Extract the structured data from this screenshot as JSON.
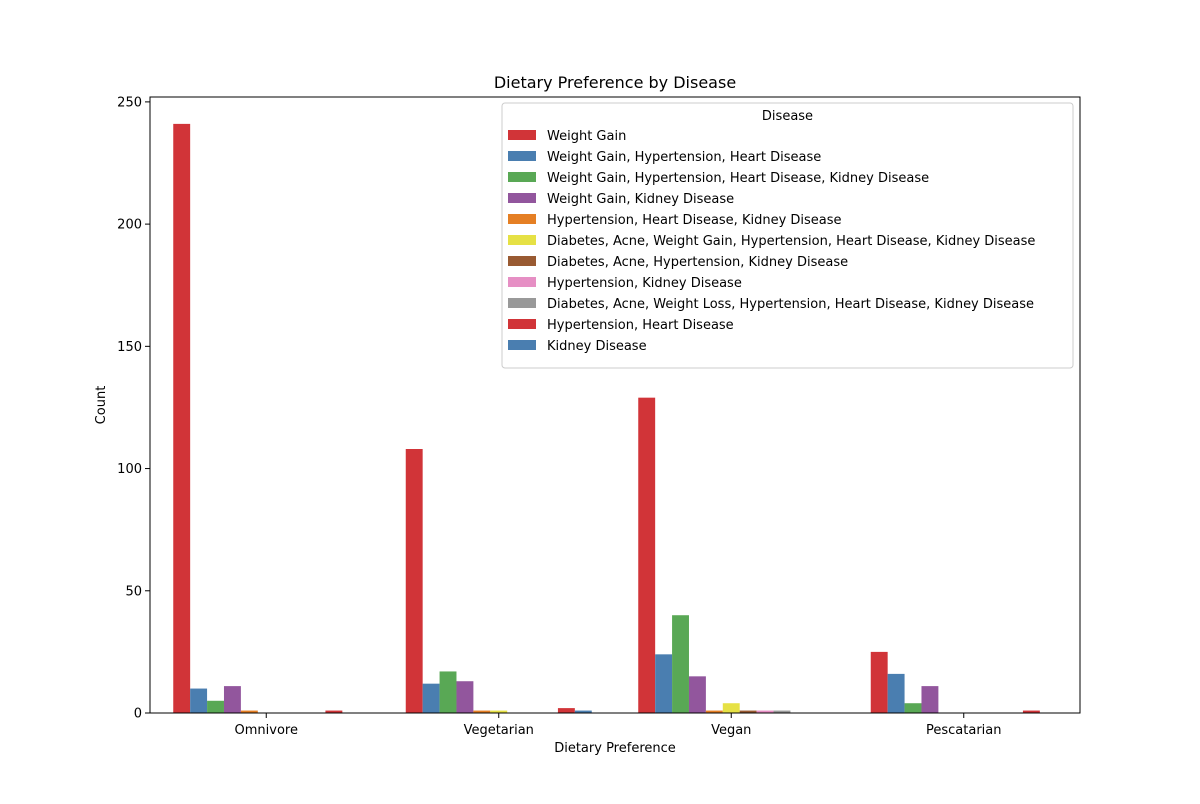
{
  "chart_data": {
    "type": "bar",
    "title": "Dietary Preference by Disease",
    "xlabel": "Dietary Preference",
    "ylabel": "Count",
    "ylim": [
      0,
      252
    ],
    "yticks": [
      0,
      50,
      100,
      150,
      200,
      250
    ],
    "categories": [
      "Omnivore",
      "Vegetarian",
      "Vegan",
      "Pescatarian"
    ],
    "legend": {
      "title": "Disease",
      "placement": "top-right"
    },
    "series": [
      {
        "name": "Weight Gain",
        "color": "#d13438",
        "values": [
          241,
          108,
          129,
          25
        ]
      },
      {
        "name": "Weight Gain, Hypertension, Heart Disease",
        "color": "#4a7eb0",
        "values": [
          10,
          12,
          24,
          16
        ]
      },
      {
        "name": "Weight Gain, Hypertension, Heart Disease, Kidney Disease",
        "color": "#59a855",
        "values": [
          5,
          17,
          40,
          4
        ]
      },
      {
        "name": "Weight Gain, Kidney Disease",
        "color": "#92569d",
        "values": [
          11,
          13,
          15,
          11
        ]
      },
      {
        "name": "Hypertension, Heart Disease, Kidney Disease",
        "color": "#e57f24",
        "values": [
          1,
          1,
          1,
          0
        ]
      },
      {
        "name": "Diabetes, Acne, Weight Gain, Hypertension, Heart Disease, Kidney Disease",
        "color": "#e6e145",
        "values": [
          0,
          1,
          4,
          0
        ]
      },
      {
        "name": "Diabetes, Acne, Hypertension, Kidney Disease",
        "color": "#995a32",
        "values": [
          0,
          0,
          1,
          0
        ]
      },
      {
        "name": "Hypertension, Kidney Disease",
        "color": "#e68fc4",
        "values": [
          0,
          0,
          1,
          0
        ]
      },
      {
        "name": "Diabetes, Acne, Weight Loss, Hypertension, Heart Disease, Kidney Disease",
        "color": "#999999",
        "values": [
          0,
          0,
          1,
          0
        ]
      },
      {
        "name": "Hypertension, Heart Disease",
        "color": "#d13438",
        "values": [
          1,
          2,
          0,
          1
        ]
      },
      {
        "name": "Kidney Disease",
        "color": "#4a7eb0",
        "values": [
          0,
          1,
          0,
          0
        ]
      }
    ]
  }
}
